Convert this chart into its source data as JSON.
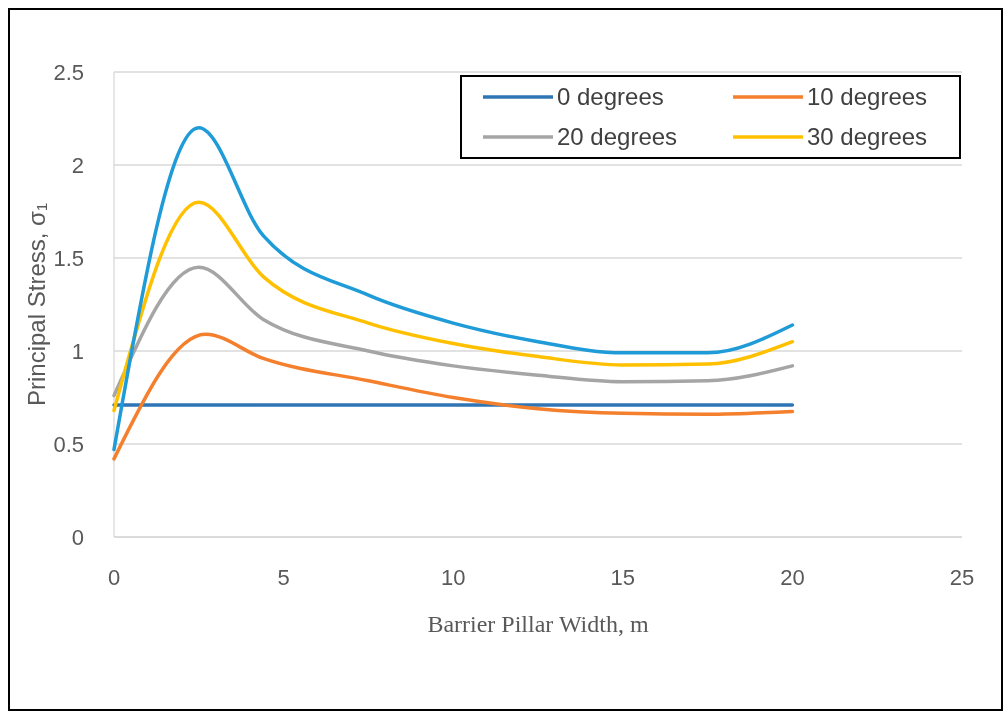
{
  "chart_data": {
    "type": "line",
    "xlabel": "Barrier Pillar Width, m",
    "ylabel": "Principal Stress, σ₁",
    "xlim": [
      0,
      25
    ],
    "xticks": [
      0,
      5,
      10,
      15,
      20,
      25
    ],
    "ylim": [
      0,
      2.5
    ],
    "yticks": [
      0,
      0.5,
      1,
      1.5,
      2,
      2.5
    ],
    "grid": "y",
    "legend": "top right",
    "marker": "none",
    "line_style": "solid",
    "series": [
      {
        "name": "0 degrees",
        "color": "#2e75b6",
        "x": [
          0,
          20
        ],
        "values": [
          0.71,
          0.71
        ]
      },
      {
        "name": "10 degrees",
        "color": "#f47f2c",
        "x": [
          0,
          2.7,
          4.4,
          7.5,
          10,
          12.5,
          15,
          17.5,
          20
        ],
        "values": [
          0.42,
          1.09,
          0.96,
          0.84,
          0.75,
          0.69,
          0.665,
          0.66,
          0.675
        ]
      },
      {
        "name": "20 degrees",
        "color": "#a5a5a5",
        "x": [
          0,
          2.5,
          4.4,
          7.5,
          10,
          12.5,
          15,
          17.5,
          20
        ],
        "values": [
          0.76,
          1.45,
          1.17,
          1.0,
          0.92,
          0.87,
          0.835,
          0.84,
          0.92
        ]
      },
      {
        "name": "30 degrees",
        "color": "#ffc000",
        "x": [
          0,
          2.5,
          4.4,
          7.5,
          10,
          12.5,
          15,
          17.5,
          20
        ],
        "values": [
          0.68,
          1.8,
          1.4,
          1.15,
          1.04,
          0.97,
          0.925,
          0.93,
          1.05
        ]
      },
      {
        "color": "#1f9bd8",
        "x": [
          0,
          2.5,
          4.4,
          7.5,
          10,
          12.5,
          15,
          17.5,
          20
        ],
        "values": [
          0.47,
          2.2,
          1.62,
          1.3,
          1.15,
          1.05,
          0.99,
          0.99,
          1.14
        ]
      }
    ]
  }
}
